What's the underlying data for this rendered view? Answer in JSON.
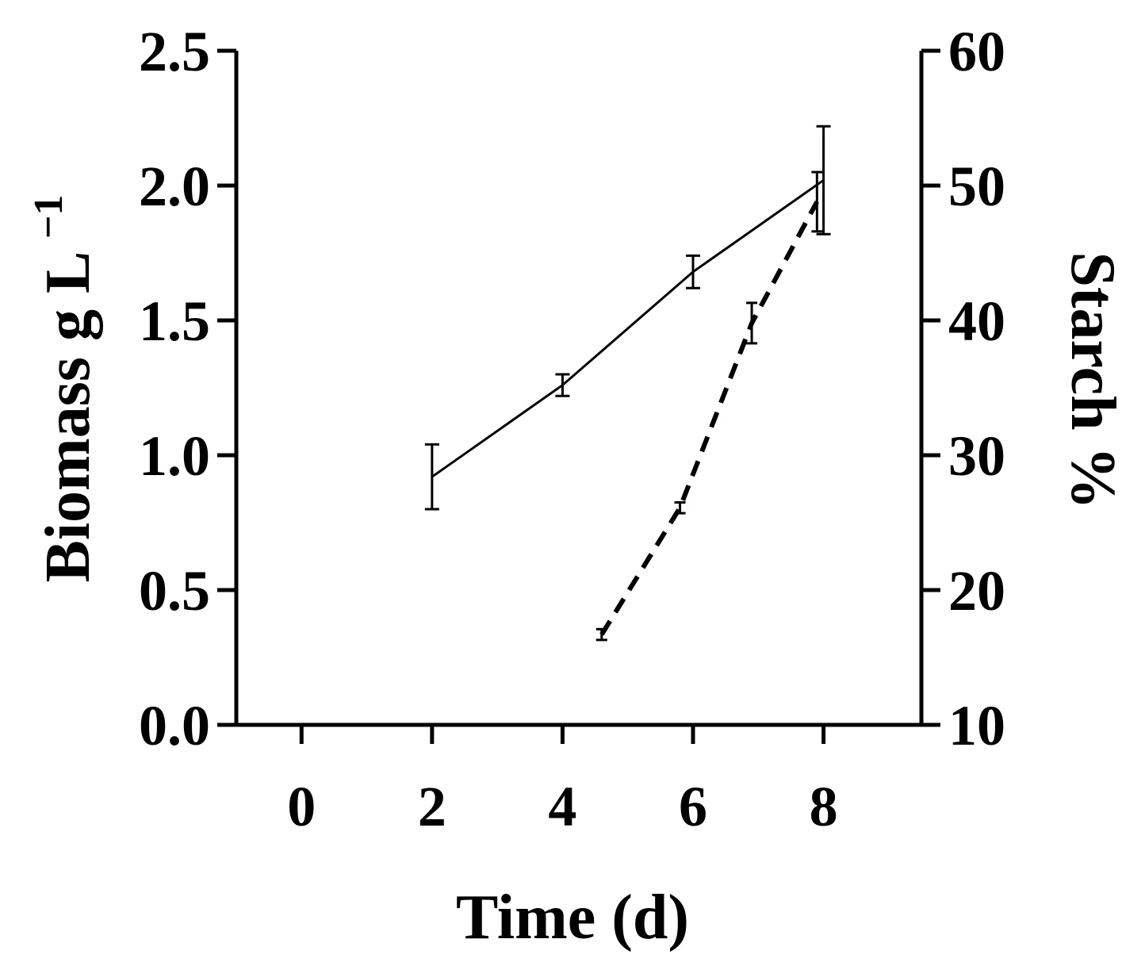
{
  "chart_data": {
    "type": "line",
    "title": "",
    "xlabel": "Time (d)",
    "ylabel": "Biomass g L⁻¹",
    "ylabel_base": "Biomass g L",
    "ylabel_sup": "−1",
    "y2label": "Starch %",
    "xlim": [
      -1,
      9.5
    ],
    "ylim": [
      0,
      2.5
    ],
    "y2lim": [
      10,
      60
    ],
    "x_ticks": [
      0,
      2,
      4,
      6,
      8
    ],
    "x_tick_labels": [
      "0",
      "2",
      "4",
      "6",
      "8"
    ],
    "y_ticks": [
      0,
      0.5,
      1,
      1.5,
      2,
      2.5
    ],
    "y_tick_labels": [
      "0.0",
      "0.5",
      "1.0",
      "1.5",
      "2.0",
      "2.5"
    ],
    "y2_ticks": [
      10,
      20,
      30,
      40,
      50,
      60
    ],
    "y2_tick_labels": [
      "10",
      "20",
      "30",
      "40",
      "50",
      "60"
    ],
    "grid": false,
    "legend": "none",
    "series": [
      {
        "axis": "left",
        "style": "solid",
        "color": "#000000",
        "x": [
          2,
          4,
          6,
          8
        ],
        "y": [
          0.92,
          1.26,
          1.68,
          2.02
        ],
        "err": [
          0.12,
          0.04,
          0.06,
          0.2
        ]
      },
      {
        "axis": "right",
        "style": "dashed",
        "color": "#000000",
        "x": [
          4.6,
          5.8,
          6.9,
          7.9
        ],
        "y": [
          16.7,
          26.1,
          39.8,
          48.8
        ],
        "err": [
          0.4,
          0.4,
          1.5,
          2.2
        ]
      }
    ]
  }
}
